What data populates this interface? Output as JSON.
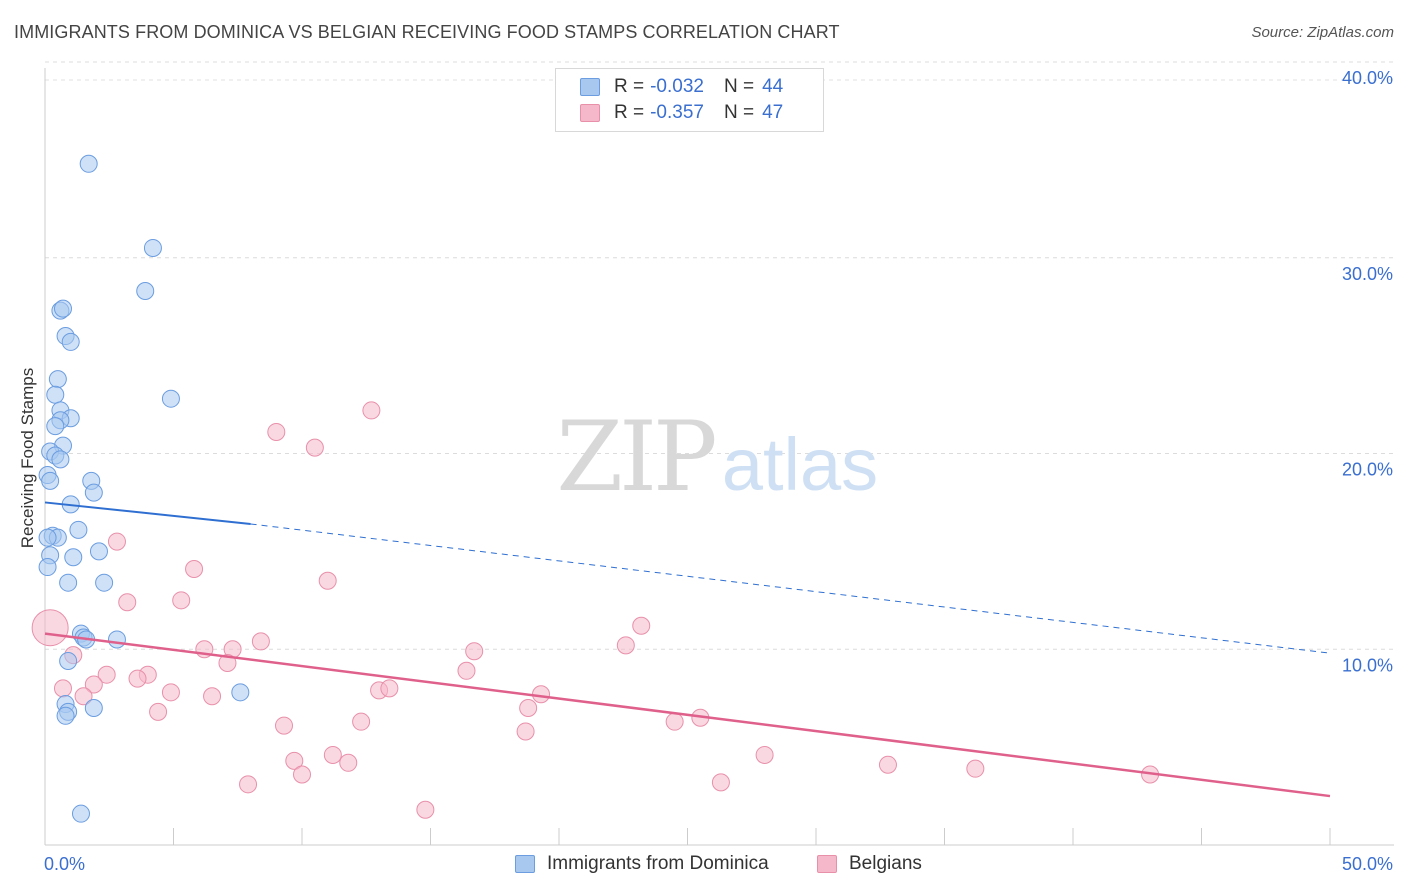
{
  "title": "IMMIGRANTS FROM DOMINICA VS BELGIAN RECEIVING FOOD STAMPS CORRELATION CHART",
  "source": "Source: ZipAtlas.com",
  "watermark": {
    "zip": "ZIP",
    "atlas": "atlas"
  },
  "legend": {
    "series1": {
      "r_label": "R =",
      "r_value": "-0.032",
      "n_label": "N =",
      "n_value": "44",
      "color": "#a8c8f0"
    },
    "series2": {
      "r_label": "R =",
      "r_value": "-0.357",
      "n_label": "N =",
      "n_value": "47",
      "color": "#f5b8ca"
    }
  },
  "chart_data": {
    "type": "scatter",
    "title": "IMMIGRANTS FROM DOMINICA VS BELGIAN RECEIVING FOOD STAMPS CORRELATION CHART",
    "xlabel": "",
    "ylabel": "Receiving Food Stamps",
    "xlim": [
      0,
      50
    ],
    "ylim": [
      0,
      40
    ],
    "x_tick_labels": [
      "0.0%",
      "50.0%"
    ],
    "y_tick_labels": [
      "10.0%",
      "20.0%",
      "30.0%",
      "40.0%"
    ],
    "y_ticks": [
      10,
      20,
      30,
      40
    ],
    "series": [
      {
        "name": "Immigrants from Dominica",
        "color": "#a8c8f0",
        "stroke": "#6b9de0",
        "line_color": "#2f6fd1",
        "trend": {
          "x0": 0,
          "y0": 17.5,
          "x_solid_end": 8,
          "y_solid_end": 16.4,
          "x1": 50,
          "y1": 9.8
        },
        "points": [
          [
            1.7,
            34.8
          ],
          [
            4.2,
            30.5
          ],
          [
            3.9,
            28.3
          ],
          [
            0.6,
            27.3
          ],
          [
            0.7,
            27.4
          ],
          [
            0.8,
            26.0
          ],
          [
            1.0,
            25.7
          ],
          [
            0.5,
            23.8
          ],
          [
            0.4,
            23.0
          ],
          [
            0.6,
            22.2
          ],
          [
            1.0,
            21.8
          ],
          [
            0.6,
            21.7
          ],
          [
            0.4,
            21.4
          ],
          [
            0.7,
            20.4
          ],
          [
            0.2,
            20.1
          ],
          [
            0.4,
            19.9
          ],
          [
            0.6,
            19.7
          ],
          [
            0.1,
            18.9
          ],
          [
            0.2,
            18.6
          ],
          [
            1.8,
            18.6
          ],
          [
            1.9,
            18.0
          ],
          [
            1.0,
            17.4
          ],
          [
            1.3,
            16.1
          ],
          [
            0.3,
            15.8
          ],
          [
            0.5,
            15.7
          ],
          [
            0.1,
            15.7
          ],
          [
            2.1,
            15.0
          ],
          [
            0.2,
            14.8
          ],
          [
            1.1,
            14.7
          ],
          [
            0.1,
            14.2
          ],
          [
            0.9,
            13.4
          ],
          [
            2.3,
            13.4
          ],
          [
            4.9,
            22.8
          ],
          [
            1.4,
            10.8
          ],
          [
            1.5,
            10.6
          ],
          [
            1.6,
            10.5
          ],
          [
            2.8,
            10.5
          ],
          [
            0.9,
            9.4
          ],
          [
            7.6,
            7.8
          ],
          [
            0.8,
            7.2
          ],
          [
            1.9,
            7.0
          ],
          [
            0.9,
            6.8
          ],
          [
            0.8,
            6.6
          ],
          [
            1.4,
            1.6
          ]
        ]
      },
      {
        "name": "Belgians",
        "color": "#f5b8ca",
        "stroke": "#e890aa",
        "line_color": "#e0608c",
        "trend": {
          "x0": 0,
          "y0": 10.8,
          "x1": 50,
          "y1": 2.5
        },
        "points": [
          [
            0.2,
            11.1
          ],
          [
            12.7,
            22.2
          ],
          [
            9.0,
            21.1
          ],
          [
            10.5,
            20.3
          ],
          [
            2.8,
            15.5
          ],
          [
            5.8,
            14.1
          ],
          [
            11.0,
            13.5
          ],
          [
            3.2,
            12.4
          ],
          [
            5.3,
            12.5
          ],
          [
            23.2,
            11.2
          ],
          [
            8.4,
            10.4
          ],
          [
            22.6,
            10.2
          ],
          [
            6.2,
            10.0
          ],
          [
            7.3,
            10.0
          ],
          [
            16.7,
            9.9
          ],
          [
            1.1,
            9.7
          ],
          [
            7.1,
            9.3
          ],
          [
            16.4,
            8.9
          ],
          [
            2.4,
            8.7
          ],
          [
            4.0,
            8.7
          ],
          [
            3.6,
            8.5
          ],
          [
            1.9,
            8.2
          ],
          [
            0.7,
            8.0
          ],
          [
            13.0,
            7.9
          ],
          [
            13.4,
            8.0
          ],
          [
            4.9,
            7.8
          ],
          [
            19.3,
            7.7
          ],
          [
            6.5,
            7.6
          ],
          [
            1.5,
            7.6
          ],
          [
            18.8,
            7.0
          ],
          [
            4.4,
            6.8
          ],
          [
            12.3,
            6.3
          ],
          [
            24.5,
            6.3
          ],
          [
            25.5,
            6.5
          ],
          [
            9.3,
            6.1
          ],
          [
            18.7,
            5.8
          ],
          [
            28.0,
            4.6
          ],
          [
            11.2,
            4.6
          ],
          [
            9.7,
            4.3
          ],
          [
            11.8,
            4.2
          ],
          [
            32.8,
            4.1
          ],
          [
            36.2,
            3.9
          ],
          [
            43.0,
            3.6
          ],
          [
            10.0,
            3.6
          ],
          [
            26.3,
            3.2
          ],
          [
            7.9,
            3.1
          ],
          [
            14.8,
            1.8
          ]
        ]
      }
    ]
  }
}
